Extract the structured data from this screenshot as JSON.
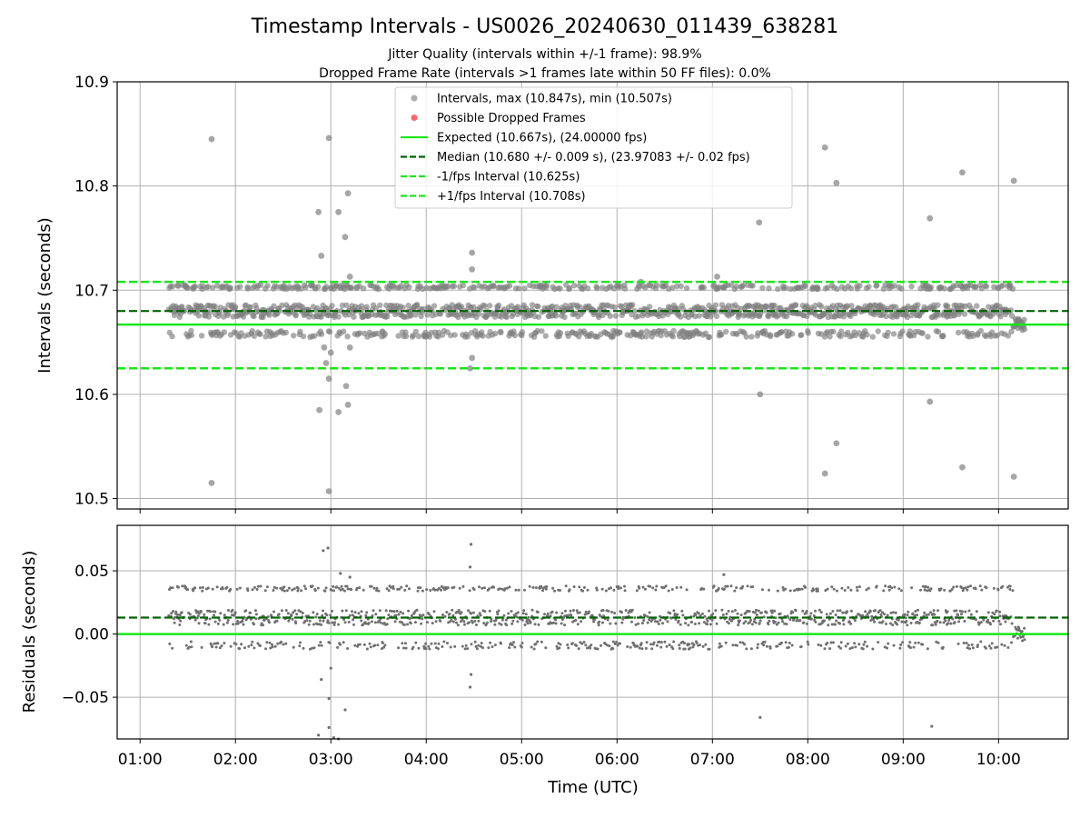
{
  "chart_data": {
    "title": "Timestamp Intervals - US0026_20240630_011439_638281",
    "subtitle_lines": [
      "Jitter Quality (intervals within +/-1 frame): 98.9%",
      "Dropped Frame Rate (intervals >1 frames late within 50 FF files): 0.0%"
    ],
    "x_label": "Time (UTC)",
    "x_ticks": [
      "01:00",
      "02:00",
      "03:00",
      "04:00",
      "05:00",
      "06:00",
      "07:00",
      "08:00",
      "09:00",
      "10:00"
    ],
    "x_range_hours": [
      0.76,
      10.73
    ],
    "grid": true,
    "colors": {
      "points": "#808080",
      "dropped": "#ff4d4d",
      "expected": "#19e619",
      "median": "#006400",
      "fps_band": "#19e619",
      "residual_points": "#707070"
    },
    "panels": [
      {
        "name": "intervals",
        "type": "scatter",
        "y_label": "Intervals (seconds)",
        "y_range": [
          10.49,
          10.9
        ],
        "y_ticks": [
          "10.5",
          "10.6",
          "10.7",
          "10.8",
          "10.9"
        ],
        "reference_lines": {
          "expected": 10.667,
          "median": 10.68,
          "minus_one_fps": 10.625,
          "plus_one_fps": 10.708
        },
        "legend_position": "upper center",
        "legend": [
          {
            "label": "Intervals, max (10.847s), min (10.507s)",
            "kind": "marker",
            "color": "#808080"
          },
          {
            "label": "Possible Dropped Frames",
            "kind": "marker",
            "color": "#ff4d4d"
          },
          {
            "label": "Expected (10.667s), (24.00000 fps)",
            "kind": "solid",
            "color": "#19e619"
          },
          {
            "label": "Median (10.680 +/- 0.009 s), (23.97083 +/- 0.02 fps)",
            "kind": "dashed",
            "color": "#006400"
          },
          {
            "label": "-1/fps Interval (10.625s)",
            "kind": "dashed",
            "color": "#19e619"
          },
          {
            "label": "+1/fps Interval (10.708s)",
            "kind": "dashed",
            "color": "#19e619"
          }
        ],
        "series_range": {
          "start": 1.3,
          "end": 10.28
        },
        "main_band": {
          "low": 10.655,
          "high": 10.705,
          "center": 10.68
        },
        "outliers": [
          [
            1.75,
            10.845
          ],
          [
            1.75,
            10.515
          ],
          [
            2.87,
            10.775
          ],
          [
            2.9,
            10.733
          ],
          [
            2.88,
            10.585
          ],
          [
            2.98,
            10.846
          ],
          [
            2.98,
            10.507
          ],
          [
            3.08,
            10.775
          ],
          [
            3.08,
            10.583
          ],
          [
            3.15,
            10.751
          ],
          [
            3.18,
            10.793
          ],
          [
            3.16,
            10.608
          ],
          [
            3.18,
            10.59
          ],
          [
            2.98,
            10.615
          ],
          [
            2.95,
            10.63
          ],
          [
            3.0,
            10.64
          ],
          [
            3.2,
            10.713
          ],
          [
            3.2,
            10.645
          ],
          [
            2.93,
            10.645
          ],
          [
            4.48,
            10.736
          ],
          [
            4.48,
            10.72
          ],
          [
            4.48,
            10.635
          ],
          [
            4.46,
            10.625
          ],
          [
            7.49,
            10.765
          ],
          [
            7.5,
            10.6
          ],
          [
            8.18,
            10.837
          ],
          [
            8.18,
            10.524
          ],
          [
            8.3,
            10.803
          ],
          [
            8.3,
            10.553
          ],
          [
            9.28,
            10.769
          ],
          [
            9.28,
            10.593
          ],
          [
            9.62,
            10.813
          ],
          [
            9.62,
            10.53
          ],
          [
            10.16,
            10.805
          ],
          [
            10.16,
            10.521
          ],
          [
            7.05,
            10.713
          ],
          [
            6.25,
            10.708
          ]
        ]
      },
      {
        "name": "residuals",
        "type": "scatter",
        "y_label": "Residuals (seconds)",
        "y_range": [
          -0.083,
          0.086
        ],
        "y_ticks": [
          "−0.05",
          "0.00",
          "0.05"
        ],
        "y_tick_values": [
          -0.05,
          0.0,
          0.05
        ],
        "reference_lines": {
          "zero": 0.0,
          "median": 0.013
        },
        "outliers": [
          [
            2.92,
            0.066
          ],
          [
            2.97,
            0.068
          ],
          [
            2.87,
            -0.08
          ],
          [
            2.98,
            -0.051
          ],
          [
            3.03,
            -0.082
          ],
          [
            3.08,
            -0.083
          ],
          [
            3.15,
            -0.06
          ],
          [
            2.98,
            -0.074
          ],
          [
            4.47,
            0.071
          ],
          [
            4.46,
            0.053
          ],
          [
            4.46,
            -0.042
          ],
          [
            4.47,
            -0.032
          ],
          [
            7.5,
            -0.066
          ],
          [
            9.3,
            -0.073
          ],
          [
            2.9,
            -0.036
          ],
          [
            3.0,
            -0.027
          ],
          [
            3.1,
            0.048
          ],
          [
            3.2,
            0.045
          ],
          [
            7.12,
            0.047
          ]
        ]
      }
    ]
  }
}
